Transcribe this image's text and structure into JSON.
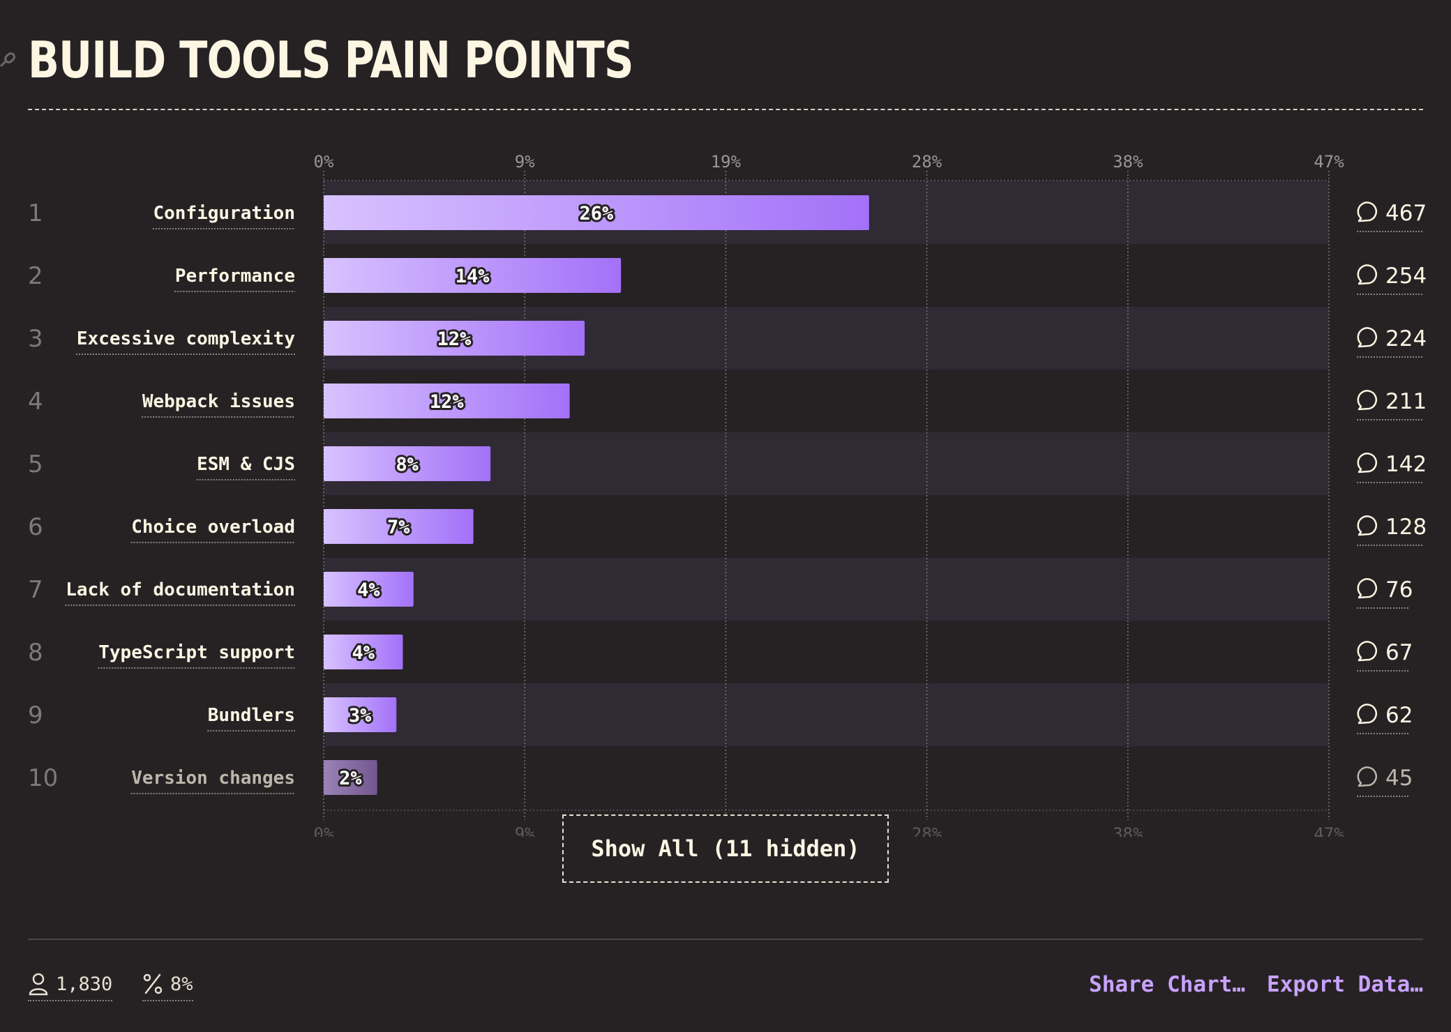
{
  "header": {
    "title": "BUILD TOOLS PAIN POINTS",
    "link_icon": "link-icon"
  },
  "chart_data": {
    "type": "bar",
    "orientation": "horizontal",
    "title": "BUILD TOOLS PAIN POINTS",
    "xlim": [
      0,
      47
    ],
    "x_ticks": [
      "0%",
      "9%",
      "19%",
      "28%",
      "38%",
      "47%"
    ],
    "grid": true,
    "categories": [
      "Configuration",
      "Performance",
      "Excessive complexity",
      "Webpack issues",
      "ESM & CJS",
      "Choice overload",
      "Lack of documentation",
      "TypeScript support",
      "Bundlers",
      "Version changes"
    ],
    "ranks": [
      "1",
      "2",
      "3",
      "4",
      "5",
      "6",
      "7",
      "8",
      "9",
      "10"
    ],
    "values": [
      25.5,
      13.9,
      12.2,
      11.5,
      7.8,
      7.0,
      4.2,
      3.7,
      3.4,
      2.5
    ],
    "value_labels": [
      "26%",
      "14%",
      "12%",
      "12%",
      "8%",
      "7%",
      "4%",
      "4%",
      "3%",
      "2%"
    ],
    "counts": [
      "467",
      "254",
      "224",
      "211",
      "142",
      "128",
      "76",
      "67",
      "62",
      "45"
    ],
    "count_icon": "comment-icon",
    "colors": {
      "bar_start": "#d7bfff",
      "bar_end": "#a674f9",
      "muted_bar": "#7d6399",
      "band": "#302a35"
    }
  },
  "controls": {
    "show_all_label": "Show All (11 hidden)"
  },
  "footer": {
    "respondents": {
      "icon": "user-icon",
      "value": "1,830"
    },
    "percent": {
      "icon": "percent-icon",
      "value": "8%"
    },
    "share_label": "Share Chart…",
    "export_label": "Export Data…"
  }
}
